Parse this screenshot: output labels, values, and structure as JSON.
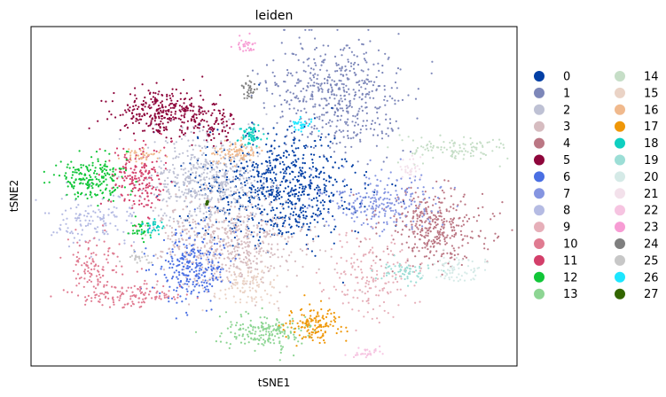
{
  "chart_data": {
    "type": "scatter",
    "title": "leiden",
    "xlabel": "tSNE1",
    "ylabel": "tSNE2",
    "grid": false,
    "ticks": "none",
    "legend_placement": "right, outside plot, two columns",
    "legend": [
      {
        "label": "0",
        "color": "#023fa5"
      },
      {
        "label": "1",
        "color": "#7d87b9"
      },
      {
        "label": "2",
        "color": "#bec1d4"
      },
      {
        "label": "3",
        "color": "#d6bcc0"
      },
      {
        "label": "4",
        "color": "#bb7784"
      },
      {
        "label": "5",
        "color": "#8e063b"
      },
      {
        "label": "6",
        "color": "#4a6fe3"
      },
      {
        "label": "7",
        "color": "#8595e1"
      },
      {
        "label": "8",
        "color": "#b5bbe3"
      },
      {
        "label": "9",
        "color": "#e6afb9"
      },
      {
        "label": "10",
        "color": "#e07b91"
      },
      {
        "label": "11",
        "color": "#d33f6a"
      },
      {
        "label": "12",
        "color": "#11c638"
      },
      {
        "label": "13",
        "color": "#8dd593"
      },
      {
        "label": "14",
        "color": "#c6dec7"
      },
      {
        "label": "15",
        "color": "#ead3c6"
      },
      {
        "label": "16",
        "color": "#f0b98d"
      },
      {
        "label": "17",
        "color": "#ef9708"
      },
      {
        "label": "18",
        "color": "#0fcfc0"
      },
      {
        "label": "19",
        "color": "#9cded6"
      },
      {
        "label": "20",
        "color": "#d5eae7"
      },
      {
        "label": "21",
        "color": "#f3e1eb"
      },
      {
        "label": "22",
        "color": "#f6c4e1"
      },
      {
        "label": "23",
        "color": "#f79cd4"
      },
      {
        "label": "24",
        "color": "#7f7f7f"
      },
      {
        "label": "25",
        "color": "#c7c7c7"
      },
      {
        "label": "26",
        "color": "#1ce6ff"
      },
      {
        "label": "27",
        "color": "#336600"
      }
    ],
    "clusters": [
      {
        "id": "1",
        "x": 0.63,
        "y": 0.2,
        "sx": 0.07,
        "sy": 0.085,
        "n": 520
      },
      {
        "id": "0",
        "x": 0.51,
        "y": 0.48,
        "sx": 0.08,
        "sy": 0.08,
        "n": 760
      },
      {
        "id": "2",
        "x": 0.36,
        "y": 0.46,
        "sx": 0.06,
        "sy": 0.07,
        "n": 520
      },
      {
        "id": "3",
        "x": 0.41,
        "y": 0.64,
        "sx": 0.075,
        "sy": 0.065,
        "n": 560
      },
      {
        "id": "4",
        "x": 0.83,
        "y": 0.59,
        "sx": 0.055,
        "sy": 0.055,
        "n": 360
      },
      {
        "id": "5",
        "x": 0.27,
        "y": 0.25,
        "sx": 0.05,
        "sy": 0.03,
        "n": 300
      },
      {
        "id": "5",
        "x": 0.38,
        "y": 0.28,
        "sx": 0.025,
        "sy": 0.03,
        "n": 80
      },
      {
        "id": "6",
        "x": 0.33,
        "y": 0.71,
        "sx": 0.035,
        "sy": 0.05,
        "n": 260
      },
      {
        "id": "7",
        "x": 0.72,
        "y": 0.52,
        "sx": 0.06,
        "sy": 0.04,
        "n": 240
      },
      {
        "id": "8",
        "x": 0.13,
        "y": 0.57,
        "sx": 0.04,
        "sy": 0.04,
        "n": 130
      },
      {
        "id": "9",
        "x": 0.7,
        "y": 0.73,
        "sx": 0.05,
        "sy": 0.06,
        "n": 170
      },
      {
        "id": "10",
        "x": 0.13,
        "y": 0.7,
        "sx": 0.03,
        "sy": 0.04,
        "n": 110
      },
      {
        "id": "10",
        "x": 0.21,
        "y": 0.79,
        "sx": 0.055,
        "sy": 0.02,
        "n": 130
      },
      {
        "id": "11",
        "x": 0.22,
        "y": 0.45,
        "sx": 0.03,
        "sy": 0.045,
        "n": 190
      },
      {
        "id": "12",
        "x": 0.13,
        "y": 0.45,
        "sx": 0.035,
        "sy": 0.03,
        "n": 200
      },
      {
        "id": "12",
        "x": 0.22,
        "y": 0.6,
        "sx": 0.012,
        "sy": 0.015,
        "n": 30
      },
      {
        "id": "13",
        "x": 0.48,
        "y": 0.9,
        "sx": 0.045,
        "sy": 0.025,
        "n": 190
      },
      {
        "id": "14",
        "x": 0.88,
        "y": 0.36,
        "sx": 0.05,
        "sy": 0.02,
        "n": 110
      },
      {
        "id": "15",
        "x": 0.45,
        "y": 0.76,
        "sx": 0.03,
        "sy": 0.035,
        "n": 110
      },
      {
        "id": "16",
        "x": 0.42,
        "y": 0.37,
        "sx": 0.025,
        "sy": 0.018,
        "n": 80
      },
      {
        "id": "16",
        "x": 0.23,
        "y": 0.38,
        "sx": 0.02,
        "sy": 0.01,
        "n": 40
      },
      {
        "id": "17",
        "x": 0.58,
        "y": 0.88,
        "sx": 0.025,
        "sy": 0.025,
        "n": 140
      },
      {
        "id": "18",
        "x": 0.45,
        "y": 0.32,
        "sx": 0.012,
        "sy": 0.014,
        "n": 60
      },
      {
        "id": "18",
        "x": 0.25,
        "y": 0.6,
        "sx": 0.012,
        "sy": 0.015,
        "n": 30
      },
      {
        "id": "19",
        "x": 0.77,
        "y": 0.72,
        "sx": 0.03,
        "sy": 0.015,
        "n": 60
      },
      {
        "id": "20",
        "x": 0.87,
        "y": 0.72,
        "sx": 0.03,
        "sy": 0.02,
        "n": 70
      },
      {
        "id": "21",
        "x": 0.78,
        "y": 0.42,
        "sx": 0.012,
        "sy": 0.02,
        "n": 30
      },
      {
        "id": "22",
        "x": 0.69,
        "y": 0.96,
        "sx": 0.018,
        "sy": 0.01,
        "n": 30
      },
      {
        "id": "23",
        "x": 0.44,
        "y": 0.055,
        "sx": 0.01,
        "sy": 0.01,
        "n": 30
      },
      {
        "id": "24",
        "x": 0.45,
        "y": 0.19,
        "sx": 0.008,
        "sy": 0.016,
        "n": 30
      },
      {
        "id": "25",
        "x": 0.22,
        "y": 0.68,
        "sx": 0.015,
        "sy": 0.01,
        "n": 25
      },
      {
        "id": "26",
        "x": 0.56,
        "y": 0.29,
        "sx": 0.015,
        "sy": 0.01,
        "n": 30
      },
      {
        "id": "27",
        "x": 0.36,
        "y": 0.52,
        "sx": 0.002,
        "sy": 0.002,
        "n": 2
      }
    ]
  }
}
